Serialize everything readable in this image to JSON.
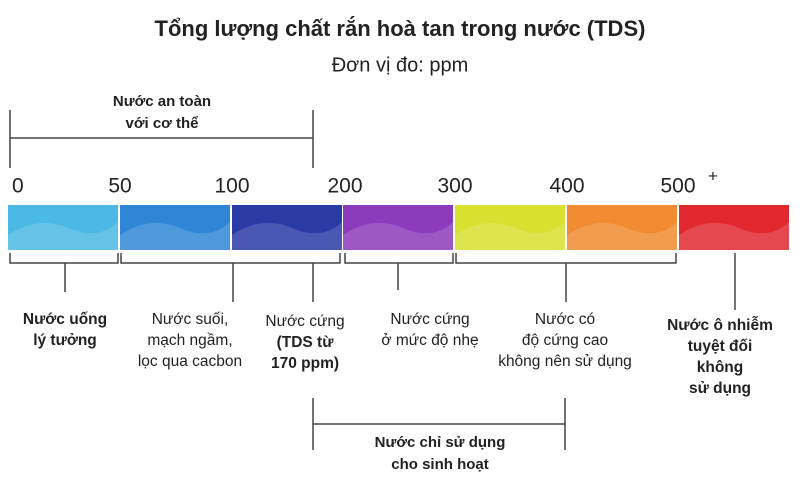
{
  "title": "Tổng lượng chất rắn hoà tan trong nước (TDS)",
  "subtitle": "Đơn vị đo: ppm",
  "safe_range": {
    "lines": [
      "Nước an toàn",
      "với cơ thể"
    ]
  },
  "scale": {
    "ticks": [
      "0",
      "50",
      "100",
      "200",
      "300",
      "400",
      "500"
    ],
    "last_tick_sup": "+",
    "colors": [
      "#4cb9e4",
      "#2f86d6",
      "#2b3ba6",
      "#8c3bbd",
      "#d9e030",
      "#f08b32",
      "#e1282f"
    ]
  },
  "groups": [
    {
      "lines": [
        "Nước uống",
        "lý tưởng"
      ],
      "bold": [
        true,
        true
      ]
    },
    {
      "lines": [
        "Nước suối,",
        "mạch ngầm,",
        "lọc qua cacbon"
      ],
      "bold": [
        false,
        false,
        false
      ]
    },
    {
      "lines": [
        "Nước cứng",
        "(TDS từ",
        "170 ppm)"
      ],
      "bold": [
        false,
        true,
        true
      ]
    },
    {
      "lines": [
        "Nước cứng",
        "ở mức độ nhẹ"
      ],
      "bold": [
        false,
        false
      ]
    },
    {
      "lines": [
        "Nước có",
        "độ cứng cao",
        "không nên sử dụng"
      ],
      "bold": [
        false,
        false,
        false
      ]
    },
    {
      "lines": [
        "Nước ô nhiễm",
        "tuyệt đối",
        "không",
        "sử dụng"
      ],
      "bold": [
        true,
        true,
        true,
        true
      ]
    }
  ],
  "household": {
    "lines": [
      "Nước chỉ sử dụng",
      "cho sinh hoạt"
    ]
  }
}
